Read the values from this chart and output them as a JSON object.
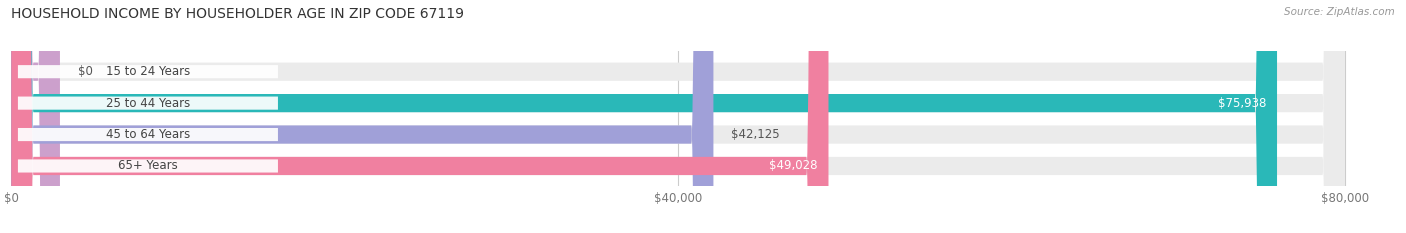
{
  "title": "HOUSEHOLD INCOME BY HOUSEHOLDER AGE IN ZIP CODE 67119",
  "source": "Source: ZipAtlas.com",
  "categories": [
    "15 to 24 Years",
    "25 to 44 Years",
    "45 to 64 Years",
    "65+ Years"
  ],
  "values": [
    0,
    75938,
    42125,
    49028
  ],
  "bar_colors": [
    "#cca0cc",
    "#2ab8b8",
    "#a0a0d8",
    "#f080a0"
  ],
  "value_labels": [
    "$0",
    "$75,938",
    "$42,125",
    "$49,028"
  ],
  "value_label_inside": [
    false,
    true,
    false,
    true
  ],
  "x_ticks": [
    0,
    40000,
    80000
  ],
  "x_tick_labels": [
    "$0",
    "$40,000",
    "$80,000"
  ],
  "max_value": 80000,
  "xlim_max": 83000,
  "figure_bg": "#ffffff",
  "bar_bg_color": "#ebebeb",
  "label_box_color": "#ffffff",
  "label_text_color": "#555555",
  "value_label_color_inside": "#ffffff",
  "value_label_color_outside": "#555555"
}
